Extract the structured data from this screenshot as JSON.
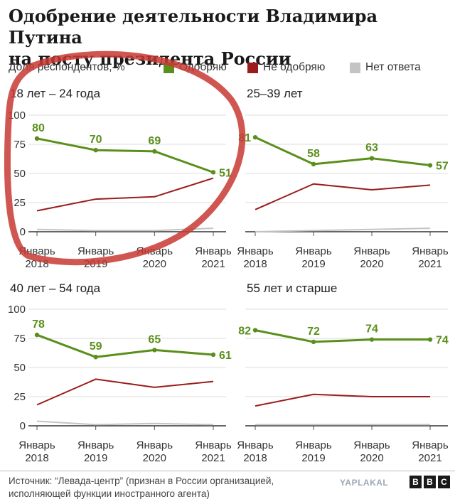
{
  "title_line1": "Одобрение деятельности Владимира Путина",
  "title_line2": "на посту президента России",
  "legend": {
    "ylabel": "Доля респондентов, %",
    "items": [
      {
        "label": "Одобряю",
        "color": "#5a8f1c"
      },
      {
        "label": "Не одобряю",
        "color": "#9b1c1c"
      },
      {
        "label": "Нет ответа",
        "color": "#c4c4c4"
      }
    ]
  },
  "chart_data": [
    {
      "type": "line",
      "title": "18 лет – 24 года",
      "categories": [
        "Январь 2018",
        "Январь 2019",
        "Январь 2020",
        "Январь 2021"
      ],
      "ylim": [
        0,
        100
      ],
      "yticks": [
        "0",
        "25",
        "50",
        "75",
        "100"
      ],
      "series": [
        {
          "name": "Одобряю",
          "values": [
            80,
            70,
            69,
            51
          ],
          "labels": [
            "80",
            "70",
            "69",
            "51"
          ]
        },
        {
          "name": "Не одобряю",
          "values": [
            18,
            28,
            30,
            46
          ]
        },
        {
          "name": "Нет ответа",
          "values": [
            2,
            1,
            1,
            3
          ]
        }
      ]
    },
    {
      "type": "line",
      "title": "25–39 лет",
      "categories": [
        "Январь 2018",
        "Январь 2019",
        "Январь 2020",
        "Январь 2021"
      ],
      "ylim": [
        0,
        100
      ],
      "series": [
        {
          "name": "Одобряю",
          "values": [
            81,
            58,
            63,
            57
          ],
          "labels": [
            "81",
            "58",
            "63",
            "57"
          ]
        },
        {
          "name": "Не одобряю",
          "values": [
            19,
            41,
            36,
            40
          ]
        },
        {
          "name": "Нет ответа",
          "values": [
            0,
            1,
            2,
            3
          ]
        }
      ]
    },
    {
      "type": "line",
      "title": "40 лет – 54 года",
      "categories": [
        "Январь 2018",
        "Январь 2019",
        "Январь 2020",
        "Январь 2021"
      ],
      "ylim": [
        0,
        100
      ],
      "yticks": [
        "0",
        "25",
        "50",
        "75",
        "100"
      ],
      "series": [
        {
          "name": "Одобряю",
          "values": [
            78,
            59,
            65,
            61
          ],
          "labels": [
            "78",
            "59",
            "65",
            "61"
          ]
        },
        {
          "name": "Не одобряю",
          "values": [
            18,
            40,
            33,
            38
          ]
        },
        {
          "name": "Нет ответа",
          "values": [
            4,
            1,
            2,
            1
          ]
        }
      ]
    },
    {
      "type": "line",
      "title": "55 лет и старше",
      "categories": [
        "Январь 2018",
        "Январь 2019",
        "Январь 2020",
        "Январь 2021"
      ],
      "ylim": [
        0,
        100
      ],
      "series": [
        {
          "name": "Одобряю",
          "values": [
            82,
            72,
            74,
            74
          ],
          "labels": [
            "82",
            "72",
            "74",
            "74"
          ]
        },
        {
          "name": "Не одобряю",
          "values": [
            17,
            27,
            25,
            25
          ]
        },
        {
          "name": "Нет ответа",
          "values": [
            1,
            1,
            1,
            1
          ]
        }
      ]
    }
  ],
  "footer_line1": "Источник: “Левада-центр” (признан в России организацией,",
  "footer_line2": "исполняющей функции иностранного агента)",
  "watermark": "YAPLAKAL",
  "bbc_letters": [
    "B",
    "B",
    "C"
  ]
}
